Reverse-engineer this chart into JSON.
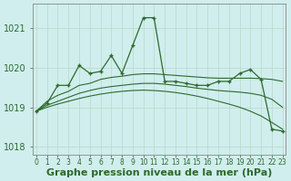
{
  "hours": [
    0,
    1,
    2,
    3,
    4,
    5,
    6,
    7,
    8,
    9,
    10,
    11,
    12,
    13,
    14,
    15,
    16,
    17,
    18,
    19,
    20,
    21,
    22,
    23
  ],
  "jagged_line": [
    1018.9,
    1019.1,
    1019.55,
    1019.55,
    1020.05,
    1019.85,
    1019.9,
    1020.3,
    1019.85,
    1020.55,
    1021.25,
    1021.25,
    1019.65,
    1019.65,
    1019.6,
    1019.55,
    1019.55,
    1019.65,
    1019.65,
    1019.85,
    1019.95,
    1019.7,
    1018.45,
    1018.4
  ],
  "smooth_upper": [
    1018.9,
    1019.15,
    1019.3,
    1019.4,
    1019.55,
    1019.6,
    1019.7,
    1019.75,
    1019.78,
    1019.82,
    1019.84,
    1019.84,
    1019.82,
    1019.8,
    1019.78,
    1019.76,
    1019.74,
    1019.73,
    1019.73,
    1019.73,
    1019.73,
    1019.72,
    1019.7,
    1019.65
  ],
  "smooth_lower": [
    1018.9,
    1019.05,
    1019.15,
    1019.25,
    1019.35,
    1019.42,
    1019.48,
    1019.52,
    1019.55,
    1019.58,
    1019.6,
    1019.6,
    1019.58,
    1019.55,
    1019.52,
    1019.48,
    1019.45,
    1019.42,
    1019.4,
    1019.38,
    1019.35,
    1019.3,
    1019.2,
    1019.0
  ],
  "diagonal_line": [
    1018.9,
    1019.0,
    1019.08,
    1019.15,
    1019.22,
    1019.28,
    1019.33,
    1019.37,
    1019.4,
    1019.42,
    1019.43,
    1019.42,
    1019.4,
    1019.37,
    1019.33,
    1019.28,
    1019.22,
    1019.15,
    1019.08,
    1019.0,
    1018.9,
    1018.78,
    1018.62,
    1018.45
  ],
  "line_color": "#2d6a2d",
  "background_color": "#d0eeed",
  "grid_color": "#b8d8c8",
  "ylim_min": 1017.8,
  "ylim_max": 1021.6,
  "yticks": [
    1018,
    1019,
    1020,
    1021
  ],
  "xlabel": "Graphe pression niveau de la mer (hPa)",
  "tick_fontsize": 7,
  "label_fontsize": 8
}
